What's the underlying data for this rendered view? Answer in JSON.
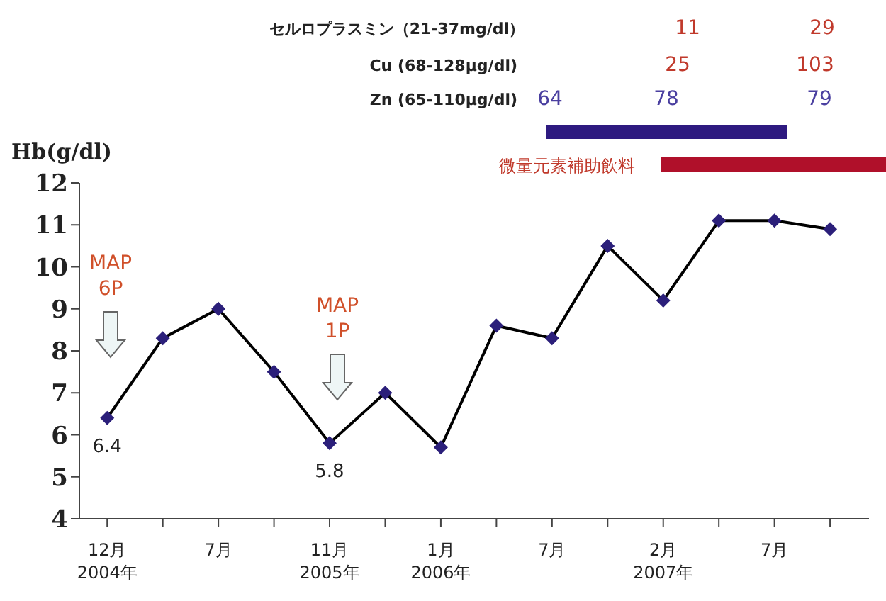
{
  "chart_data": {
    "type": "line",
    "ylabel": "Hb(g/dl)",
    "categories": [
      "12月 2004年",
      null,
      "7月",
      null,
      "11月 2005年",
      null,
      "1月 2006年",
      null,
      "7月",
      null,
      "2月 2007年",
      null,
      "7月",
      null
    ],
    "series": [
      {
        "color": "#000000",
        "values": [
          6.4,
          8.3,
          9.0,
          7.5,
          5.8,
          7.0,
          5.7,
          8.6,
          8.3,
          10.5,
          9.2,
          11.1,
          11.1,
          10.9
        ],
        "value_labels": [
          "6.4",
          null,
          null,
          null,
          "5.8",
          null,
          null,
          null,
          null,
          null,
          null,
          null,
          null,
          null
        ]
      }
    ],
    "ylim": [
      4,
      12
    ],
    "yticks": [
      4,
      5,
      6,
      7,
      8,
      9,
      10,
      11,
      12
    ],
    "grid": false,
    "marker": "diamond",
    "line_style": "solid",
    "annotations": [
      "セルロプラスミン（21-37mg/dl）",
      "11",
      "29",
      "Cu (68-128μg/dl)",
      "25",
      "103",
      "Zn (65-110μg/dl)",
      "64",
      "78",
      "79",
      "微量元素補助飲料",
      "MAP 6P",
      "MAP 1P"
    ]
  }
}
